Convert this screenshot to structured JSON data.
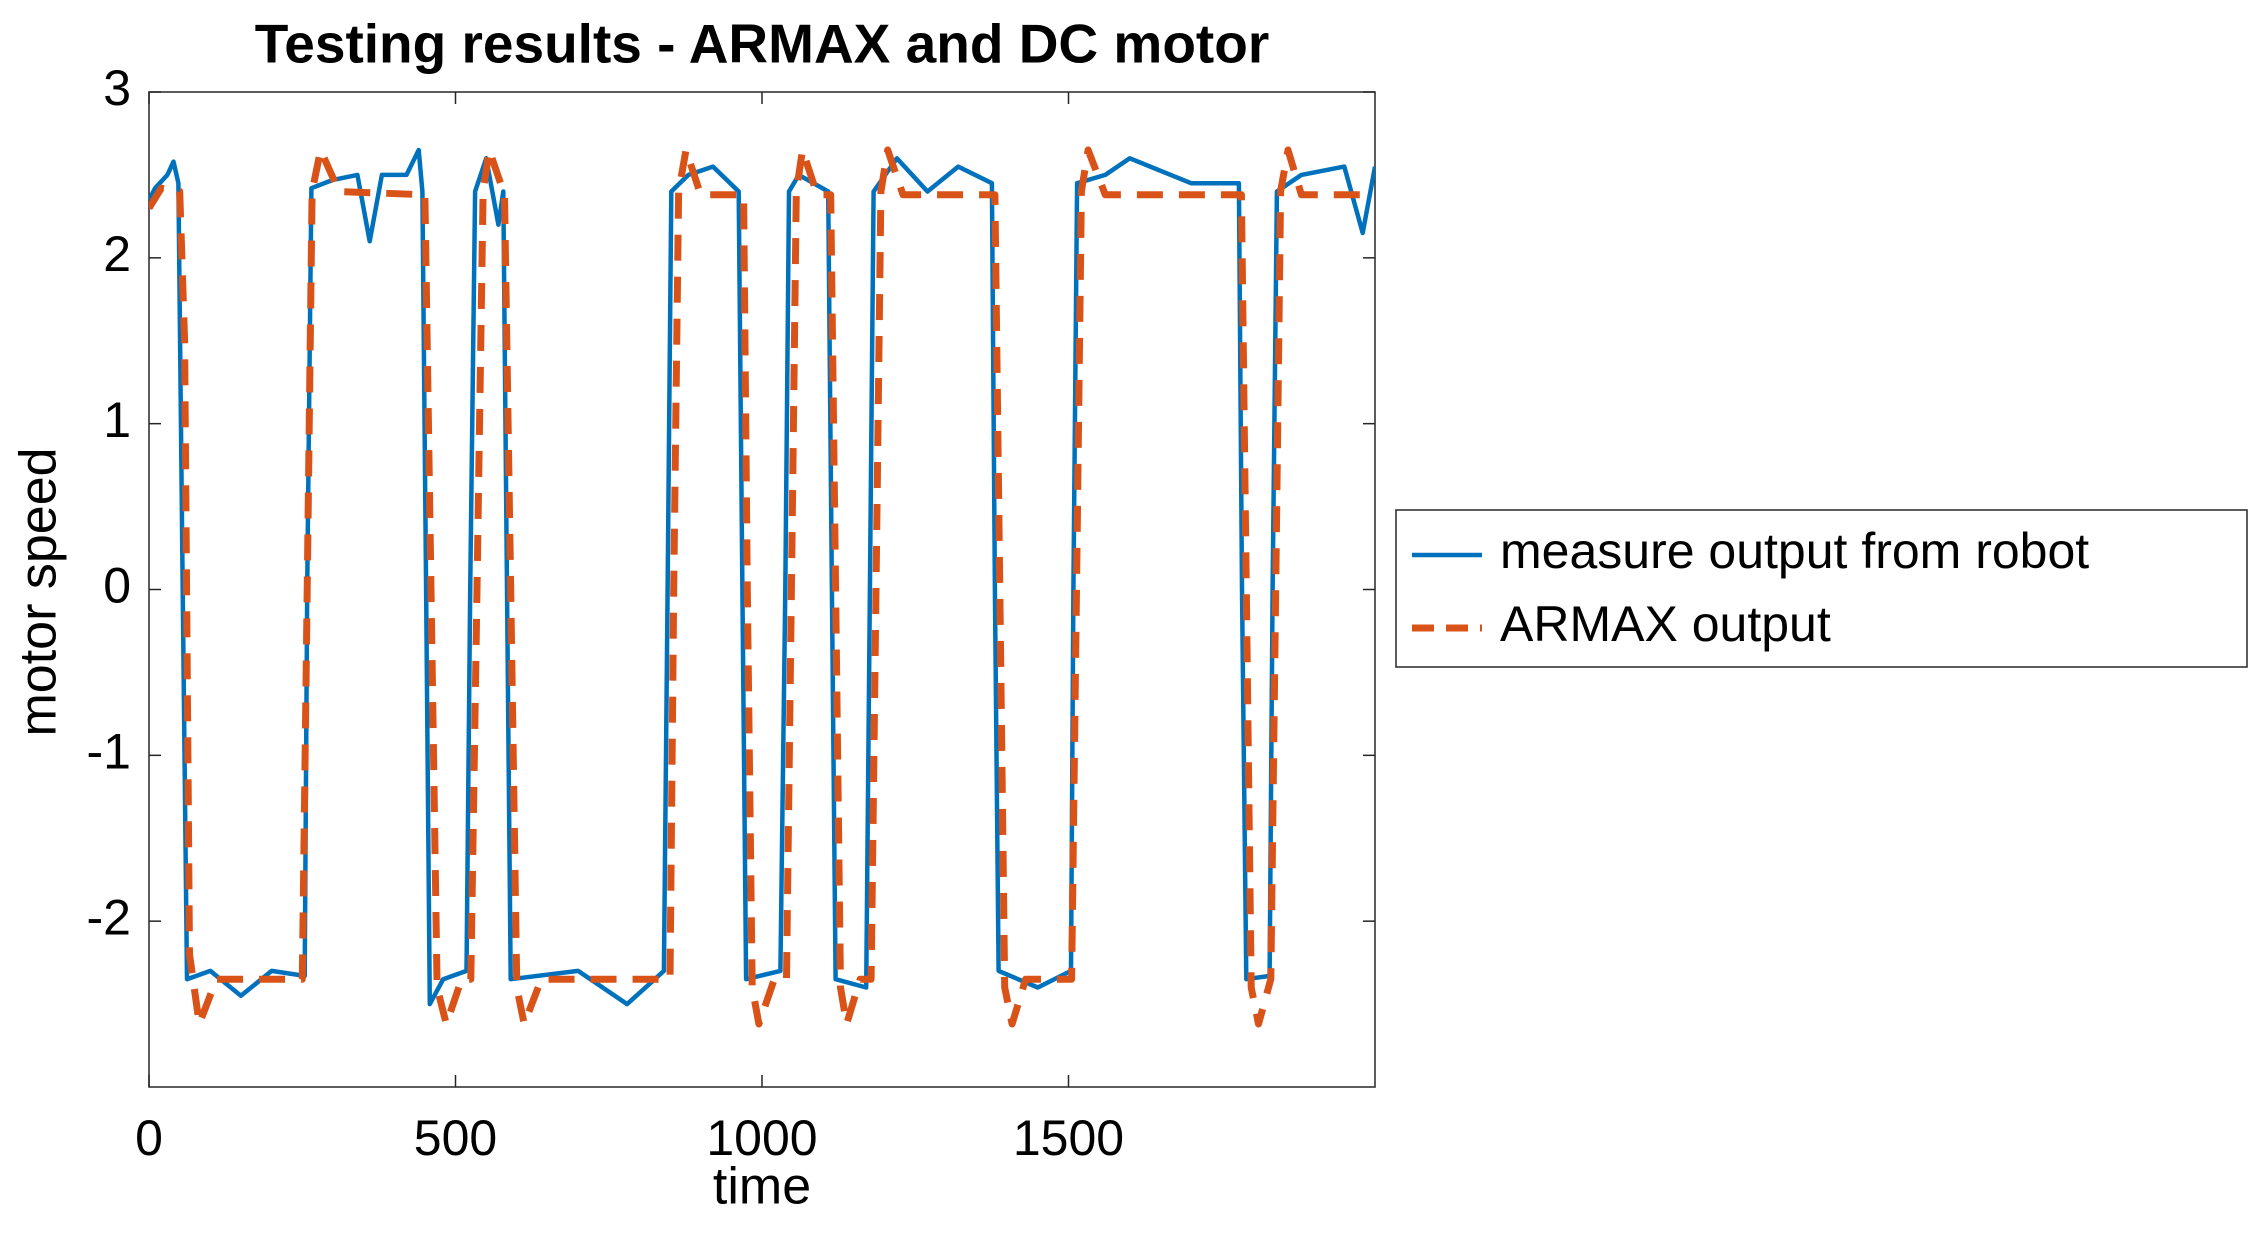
{
  "chart_data": {
    "type": "line",
    "title": "Testing results - ARMAX and DC motor",
    "x_label": "time",
    "y_label": "motor speed",
    "xlim": [
      0,
      2000
    ],
    "ylim": [
      -3,
      3
    ],
    "xticks": [
      0,
      500,
      1000,
      1500
    ],
    "yticks": [
      -2,
      -1,
      0,
      1,
      2,
      3
    ],
    "grid": false,
    "legend_position": "right",
    "series": [
      {
        "name": "measure output from robot",
        "color": "#0072bd",
        "style": "solid",
        "x": [
          0,
          10,
          30,
          40,
          48,
          55,
          62,
          100,
          150,
          200,
          254,
          258,
          265,
          300,
          340,
          360,
          380,
          420,
          440,
          446,
          452,
          458,
          480,
          518,
          524,
          532,
          550,
          570,
          578,
          584,
          590,
          700,
          780,
          840,
          846,
          852,
          880,
          920,
          962,
          968,
          974,
          1030,
          1038,
          1044,
          1060,
          1108,
          1114,
          1120,
          1170,
          1176,
          1182,
          1220,
          1270,
          1320,
          1375,
          1380,
          1386,
          1450,
          1504,
          1508,
          1514,
          1560,
          1600,
          1700,
          1778,
          1783,
          1790,
          1828,
          1833,
          1840,
          1880,
          1950,
          1980,
          2000
        ],
        "values": [
          2.35,
          2.42,
          2.5,
          2.58,
          2.45,
          0,
          -2.35,
          -2.3,
          -2.45,
          -2.3,
          -2.33,
          0,
          2.42,
          2.47,
          2.5,
          2.1,
          2.5,
          2.5,
          2.65,
          2.4,
          0,
          -2.5,
          -2.35,
          -2.3,
          0,
          2.4,
          2.6,
          2.2,
          2.4,
          0,
          -2.35,
          -2.3,
          -2.5,
          -2.3,
          0,
          2.4,
          2.5,
          2.55,
          2.4,
          0,
          -2.35,
          -2.3,
          0,
          2.4,
          2.5,
          2.4,
          0,
          -2.35,
          -2.4,
          0,
          2.4,
          2.6,
          2.4,
          2.55,
          2.45,
          0,
          -2.3,
          -2.4,
          -2.3,
          0,
          2.45,
          2.5,
          2.6,
          2.45,
          2.45,
          0,
          -2.35,
          -2.33,
          0,
          2.4,
          2.5,
          2.55,
          2.15,
          2.55
        ]
      },
      {
        "name": "ARMAX output",
        "color": "#d95319",
        "style": "dashed",
        "x": [
          0,
          20,
          50,
          58,
          66,
          82,
          110,
          250,
          258,
          266,
          280,
          310,
          450,
          460,
          470,
          485,
          510,
          525,
          535,
          545,
          555,
          580,
          590,
          600,
          612,
          640,
          850,
          856,
          864,
          876,
          900,
          970,
          976,
          984,
          995,
          1020,
          1040,
          1048,
          1056,
          1066,
          1090,
          1112,
          1120,
          1128,
          1138,
          1160,
          1178,
          1186,
          1194,
          1205,
          1230,
          1380,
          1388,
          1396,
          1408,
          1430,
          1505,
          1513,
          1521,
          1532,
          1560,
          1782,
          1790,
          1798,
          1810,
          1830,
          1838,
          1846,
          1858,
          1880,
          2000
        ],
        "values": [
          2.3,
          2.42,
          2.4,
          1.5,
          -2.2,
          -2.62,
          -2.35,
          -2.35,
          0,
          2.4,
          2.65,
          2.4,
          2.38,
          0,
          -2.4,
          -2.62,
          -2.35,
          -2.35,
          0,
          2.4,
          2.65,
          2.38,
          0,
          -2.4,
          -2.62,
          -2.35,
          -2.35,
          0,
          2.4,
          2.65,
          2.38,
          2.38,
          0,
          -2.4,
          -2.62,
          -2.35,
          -2.35,
          0,
          2.4,
          2.65,
          2.38,
          2.38,
          0,
          -2.4,
          -2.62,
          -2.35,
          -2.35,
          0,
          2.4,
          2.65,
          2.38,
          2.38,
          0,
          -2.4,
          -2.62,
          -2.35,
          -2.35,
          0,
          2.4,
          2.65,
          2.38,
          2.38,
          0,
          -2.4,
          -2.62,
          -2.35,
          0,
          2.4,
          2.65,
          2.38,
          2.38
        ]
      }
    ]
  }
}
